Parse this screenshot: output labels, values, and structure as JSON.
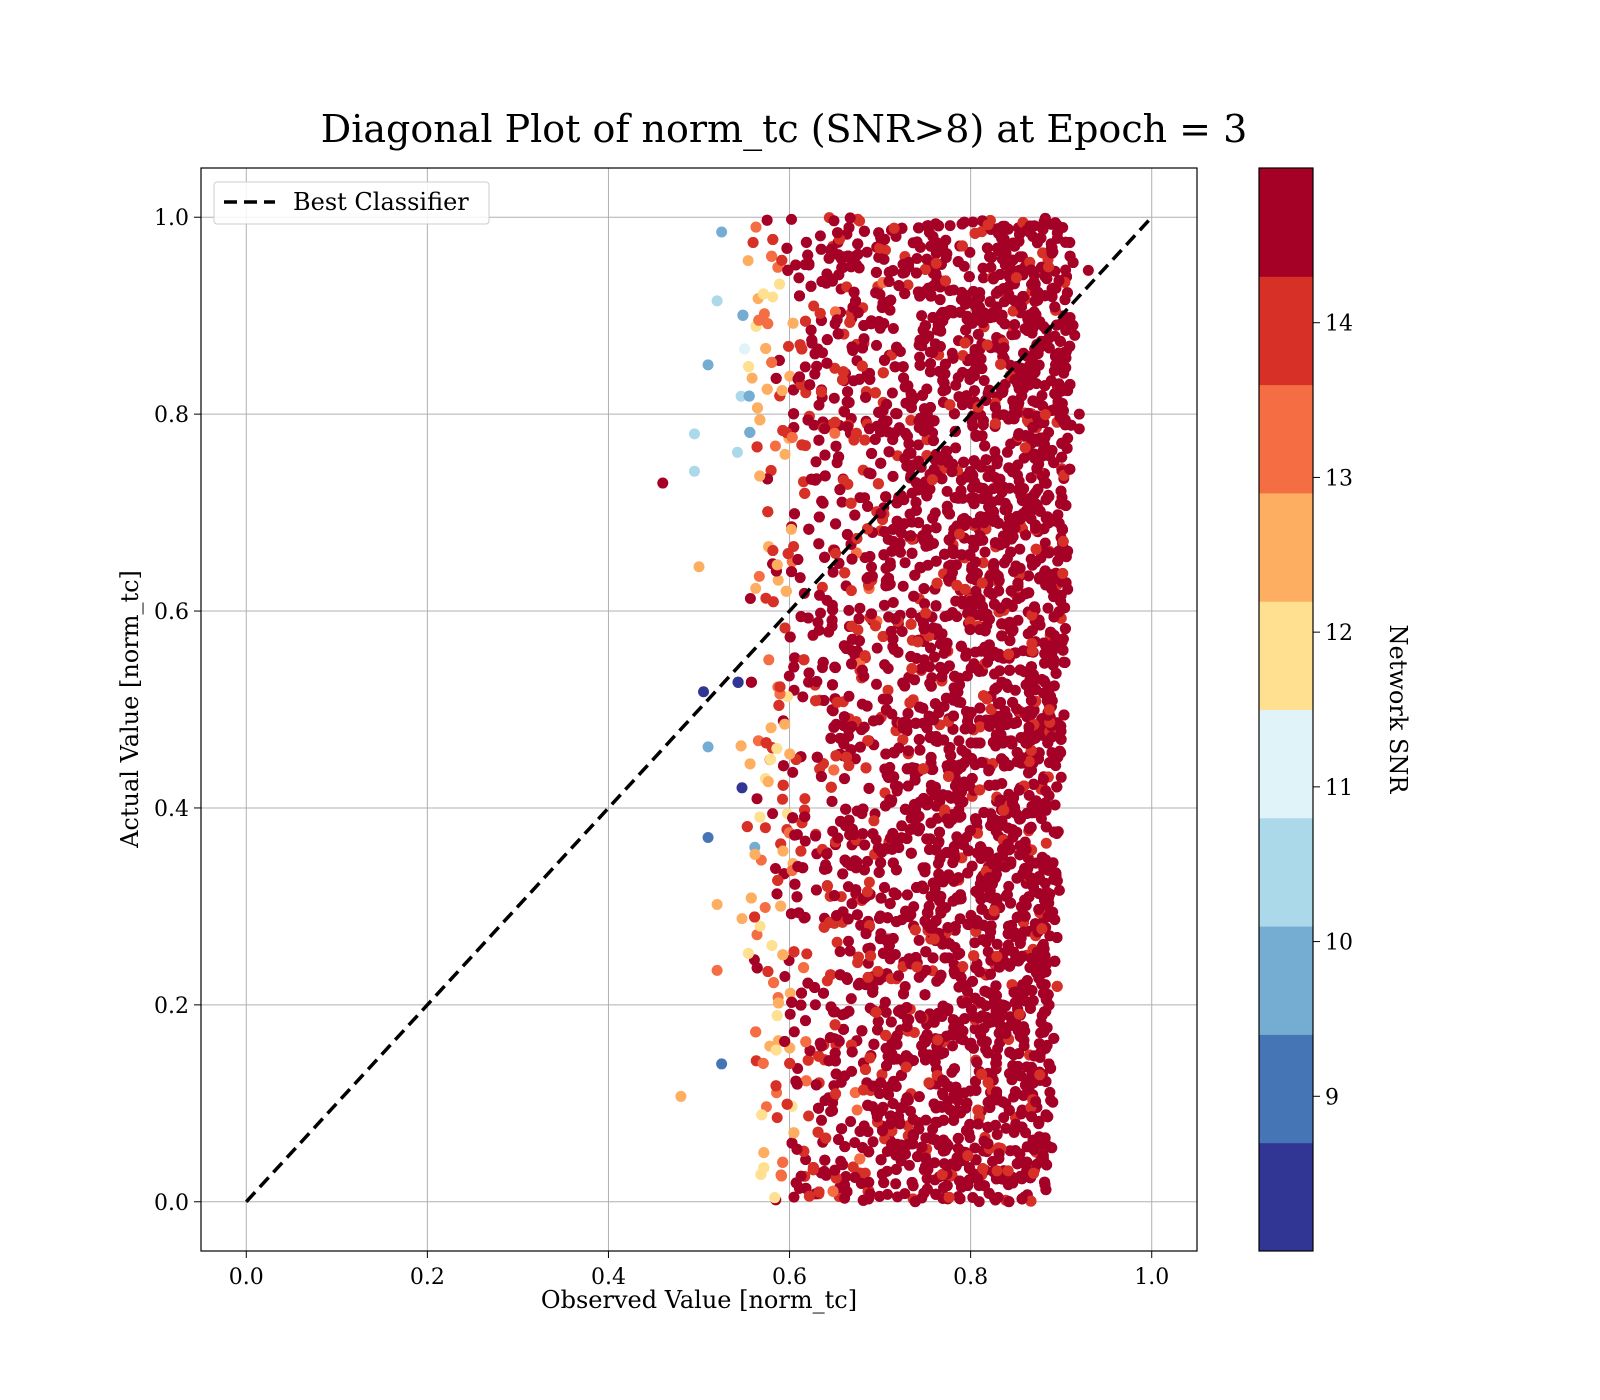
{
  "chart_data": {
    "type": "scatter",
    "title": "Diagonal Plot of norm_tc (SNR>8) at Epoch = 3",
    "xlabel": "Observed Value [norm_tc]",
    "ylabel": "Actual Value [norm_tc]",
    "xlim": [
      -0.05,
      1.05
    ],
    "ylim": [
      -0.05,
      1.05
    ],
    "xticks": [
      "0.0",
      "0.2",
      "0.4",
      "0.6",
      "0.8",
      "1.0"
    ],
    "yticks": [
      "0.0",
      "0.2",
      "0.4",
      "0.6",
      "0.8",
      "1.0"
    ],
    "xtick_values": [
      0.0,
      0.2,
      0.4,
      0.6,
      0.8,
      1.0
    ],
    "ytick_values": [
      0.0,
      0.2,
      0.4,
      0.6,
      0.8,
      1.0
    ],
    "grid": true,
    "legend": {
      "placement": "upper-left",
      "entries": [
        {
          "label": "Best Classifier",
          "style": "dashed",
          "color": "#000000"
        }
      ]
    },
    "reference_line": {
      "x": [
        0.0,
        1.0
      ],
      "y": [
        0.0,
        1.0
      ]
    },
    "point_cloud": {
      "x_range": [
        0.53,
        0.92
      ],
      "y_range": [
        0.0,
        1.0
      ],
      "dominant_snr": 15,
      "description_colors_by_snr": true
    },
    "outliers": [
      {
        "x": 0.46,
        "y": 0.73,
        "snr": 14.8
      },
      {
        "x": 0.48,
        "y": 0.107,
        "snr": 12.6
      },
      {
        "x": 0.495,
        "y": 0.742,
        "snr": 10.5
      },
      {
        "x": 0.495,
        "y": 0.78,
        "snr": 10.4
      },
      {
        "x": 0.5,
        "y": 0.645,
        "snr": 12.6
      },
      {
        "x": 0.505,
        "y": 0.518,
        "snr": 8.2
      },
      {
        "x": 0.51,
        "y": 0.85,
        "snr": 9.8
      },
      {
        "x": 0.51,
        "y": 0.462,
        "snr": 9.5
      },
      {
        "x": 0.51,
        "y": 0.37,
        "snr": 9.2
      },
      {
        "x": 0.52,
        "y": 0.235,
        "snr": 13.2
      },
      {
        "x": 0.52,
        "y": 0.302,
        "snr": 12.5
      },
      {
        "x": 0.52,
        "y": 0.915,
        "snr": 10.6
      },
      {
        "x": 0.525,
        "y": 0.985,
        "snr": 9.9
      },
      {
        "x": 0.525,
        "y": 0.14,
        "snr": 9.0
      },
      {
        "x": 0.93,
        "y": 0.946,
        "snr": 14.8
      },
      {
        "x": 0.92,
        "y": 0.785,
        "snr": 14.8
      },
      {
        "x": 0.92,
        "y": 0.8,
        "snr": 14.8
      },
      {
        "x": 0.915,
        "y": 0.88,
        "snr": 14.8
      }
    ],
    "colorbar": {
      "label": "Network SNR",
      "range": [
        8,
        15
      ],
      "ticks": [
        "9",
        "10",
        "11",
        "12",
        "13",
        "14"
      ],
      "tick_values": [
        9,
        10,
        11,
        12,
        13,
        14
      ],
      "colors": [
        "#313695",
        "#4575b4",
        "#74add1",
        "#abd9e9",
        "#e0f3f8",
        "#fee090",
        "#fdae61",
        "#f46d43",
        "#d73027",
        "#a50026"
      ]
    }
  }
}
